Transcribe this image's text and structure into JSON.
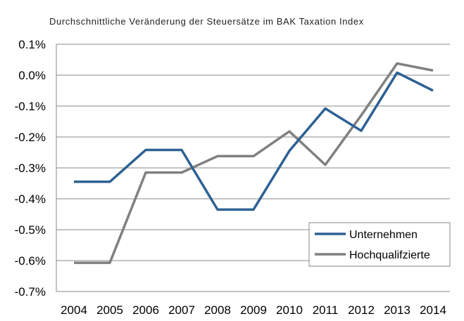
{
  "chart_data": {
    "type": "line",
    "title": "Durchschnittliche Veränderung der Steuersätze im BAK Taxation Index",
    "xlabel": "",
    "ylabel": "",
    "categories": [
      "2004",
      "2005",
      "2006",
      "2007",
      "2008",
      "2009",
      "2010",
      "2011",
      "2012",
      "2013",
      "2014"
    ],
    "ylim": [
      -0.7,
      0.1
    ],
    "yticks": [
      0.1,
      0.0,
      -0.1,
      -0.2,
      -0.3,
      -0.4,
      -0.5,
      -0.6,
      -0.7
    ],
    "ytick_labels": [
      "0.1%",
      "0.0%",
      "-0.1%",
      "-0.2%",
      "-0.3%",
      "-0.4%",
      "-0.5%",
      "-0.6%",
      "-0.7%"
    ],
    "grid": true,
    "legend_position": "bottom-right",
    "series": [
      {
        "name": "Unternehmen",
        "color": "#2e6193",
        "values": [
          -0.345,
          -0.345,
          -0.242,
          -0.242,
          -0.435,
          -0.435,
          -0.245,
          -0.108,
          -0.18,
          0.008,
          -0.05
        ]
      },
      {
        "name": "Hochqualifzierte",
        "color": "#808080",
        "values": [
          -0.607,
          -0.607,
          -0.315,
          -0.315,
          -0.262,
          -0.262,
          -0.182,
          -0.29,
          -0.13,
          0.038,
          0.015
        ]
      }
    ]
  }
}
